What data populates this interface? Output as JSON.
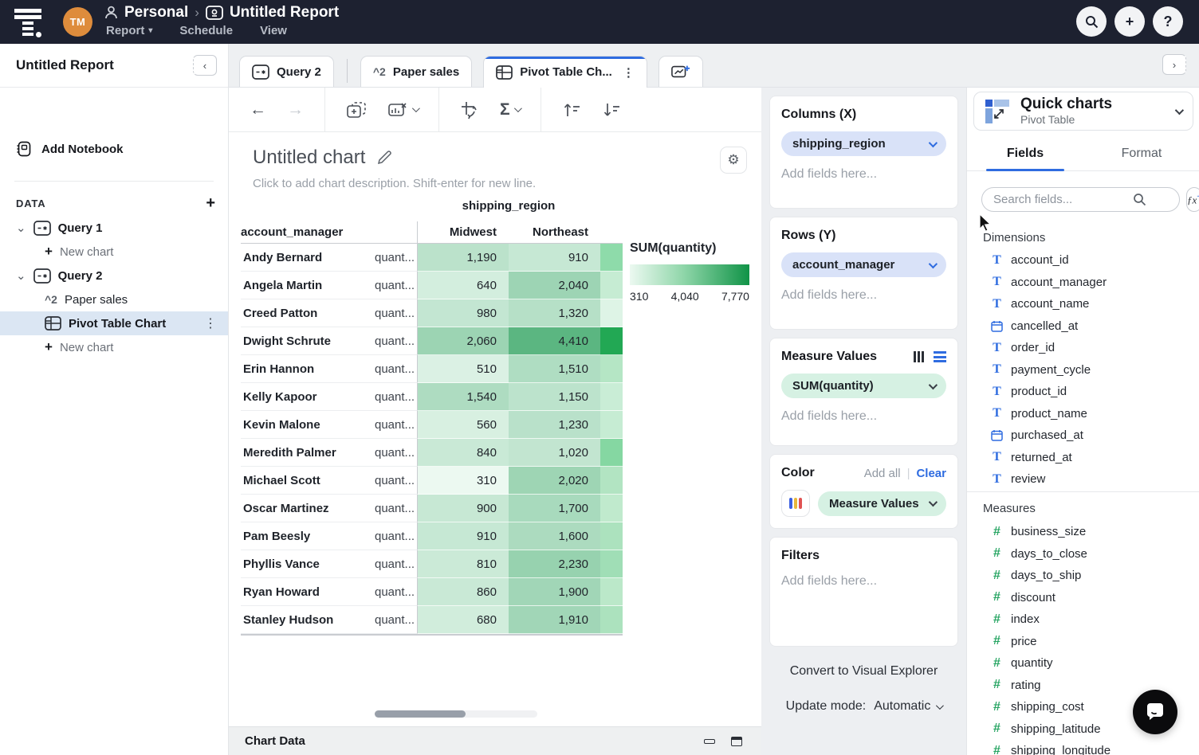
{
  "topbar": {
    "avatar_initials": "TM",
    "breadcrumb": {
      "workspace": "Personal",
      "report": "Untitled Report"
    },
    "menus": [
      {
        "label": "Report"
      },
      {
        "label": "Schedule"
      },
      {
        "label": "View"
      }
    ],
    "action_icons": [
      "search",
      "add",
      "help"
    ]
  },
  "sidebar": {
    "title": "Untitled Report",
    "add_notebook_label": "Add Notebook",
    "data_section_label": "DATA",
    "tree": [
      {
        "kind": "query",
        "label": "Query 1"
      },
      {
        "kind": "new_chart",
        "label": "New chart"
      },
      {
        "kind": "query",
        "label": "Query 2"
      },
      {
        "kind": "result",
        "label": "Paper sales"
      },
      {
        "kind": "pivot",
        "label": "Pivot Table Chart",
        "selected": true
      },
      {
        "kind": "new_chart",
        "label": "New chart"
      }
    ]
  },
  "tabs": [
    {
      "icon": "query",
      "label": "Query 2"
    },
    {
      "icon": "result",
      "label": "Paper sales"
    },
    {
      "icon": "pivot",
      "label": "Pivot Table Ch...",
      "active": true
    }
  ],
  "chart": {
    "title": "Untitled chart",
    "description_placeholder": "Click to add chart description. Shift-enter for new line."
  },
  "chart_data": {
    "type": "heatmap",
    "title": "Untitled chart",
    "column_field": "shipping_region",
    "row_field": "account_manager",
    "measure_cell_label": "quant...",
    "columns": [
      "Midwest",
      "Northeast"
    ],
    "rows": [
      "Andy Bernard",
      "Angela Martin",
      "Creed Patton",
      "Dwight Schrute",
      "Erin Hannon",
      "Kelly Kapoor",
      "Kevin Malone",
      "Meredith Palmer",
      "Michael Scott",
      "Oscar Martinez",
      "Pam Beesly",
      "Phyllis Vance",
      "Ryan Howard",
      "Stanley Hudson"
    ],
    "values": [
      [
        1190,
        910
      ],
      [
        640,
        2040
      ],
      [
        980,
        1320
      ],
      [
        2060,
        4410
      ],
      [
        510,
        1510
      ],
      [
        1540,
        1150
      ],
      [
        560,
        1230
      ],
      [
        840,
        1020
      ],
      [
        310,
        2020
      ],
      [
        900,
        1700
      ],
      [
        910,
        1600
      ],
      [
        810,
        2230
      ],
      [
        860,
        1900
      ],
      [
        680,
        1910
      ]
    ],
    "partial_next_column_colors": [
      "#8edbaa",
      "#c6ecd3",
      "#def4e6",
      "#22a854",
      "#b5e6c5",
      "#c9edd6",
      "#c6ecd3",
      "#85d7a2",
      "#b2e4c2",
      "#c0eacd",
      "#ace2be",
      "#a0deb6",
      "#bbe8c9",
      "#ace2be"
    ],
    "legend": {
      "title": "SUM(quantity)",
      "ticks": [
        "310",
        "4,040",
        "7,770"
      ],
      "min": 310,
      "max": 7770,
      "color_low": "#ecf9f1",
      "color_high": "#109347"
    }
  },
  "config_panel": {
    "columns_x": {
      "title": "Columns (X)",
      "fields": [
        "shipping_region"
      ],
      "placeholder": "Add fields here..."
    },
    "rows_y": {
      "title": "Rows (Y)",
      "fields": [
        "account_manager"
      ],
      "placeholder": "Add fields here..."
    },
    "measure_values": {
      "title": "Measure Values",
      "fields": [
        "SUM(quantity)"
      ],
      "placeholder": "Add fields here..."
    },
    "color": {
      "title": "Color",
      "add_all_label": "Add all",
      "clear_label": "Clear",
      "field": "Measure Values"
    },
    "filters": {
      "title": "Filters",
      "placeholder": "Add fields here..."
    },
    "convert_label": "Convert to Visual Explorer",
    "update_mode": {
      "label": "Update mode:",
      "value": "Automatic"
    }
  },
  "fields_panel": {
    "quick_charts": {
      "title": "Quick charts",
      "subtitle": "Pivot Table"
    },
    "tabs": [
      {
        "label": "Fields",
        "active": true
      },
      {
        "label": "Format"
      }
    ],
    "search_placeholder": "Search fields...",
    "dimensions": {
      "title": "Dimensions",
      "items": [
        {
          "icon": "text",
          "label": "account_id"
        },
        {
          "icon": "text",
          "label": "account_manager"
        },
        {
          "icon": "text",
          "label": "account_name"
        },
        {
          "icon": "calendar",
          "label": "cancelled_at"
        },
        {
          "icon": "text",
          "label": "order_id"
        },
        {
          "icon": "text",
          "label": "payment_cycle"
        },
        {
          "icon": "text",
          "label": "product_id"
        },
        {
          "icon": "text",
          "label": "product_name"
        },
        {
          "icon": "calendar",
          "label": "purchased_at"
        },
        {
          "icon": "text",
          "label": "returned_at"
        },
        {
          "icon": "text",
          "label": "review"
        }
      ]
    },
    "measures": {
      "title": "Measures",
      "items": [
        "business_size",
        "days_to_close",
        "days_to_ship",
        "discount",
        "index",
        "price",
        "quantity",
        "rating",
        "shipping_cost",
        "shipping_latitude",
        "shipping_longitude"
      ]
    }
  },
  "bottom_bar": {
    "label": "Chart Data"
  },
  "colors": {
    "accent_blue": "#2f6ce0",
    "accent_green": "#27a563",
    "topbar_bg": "#1d2130",
    "avatar_orange": "#de8c3c",
    "pill_lavender": "#d9e2f8",
    "pill_mint": "#d6f1e3",
    "selected_row_bg": "#dbe6f3",
    "palette_icon": [
      "#3b5fe0",
      "#e8b73a",
      "#e05252"
    ]
  }
}
